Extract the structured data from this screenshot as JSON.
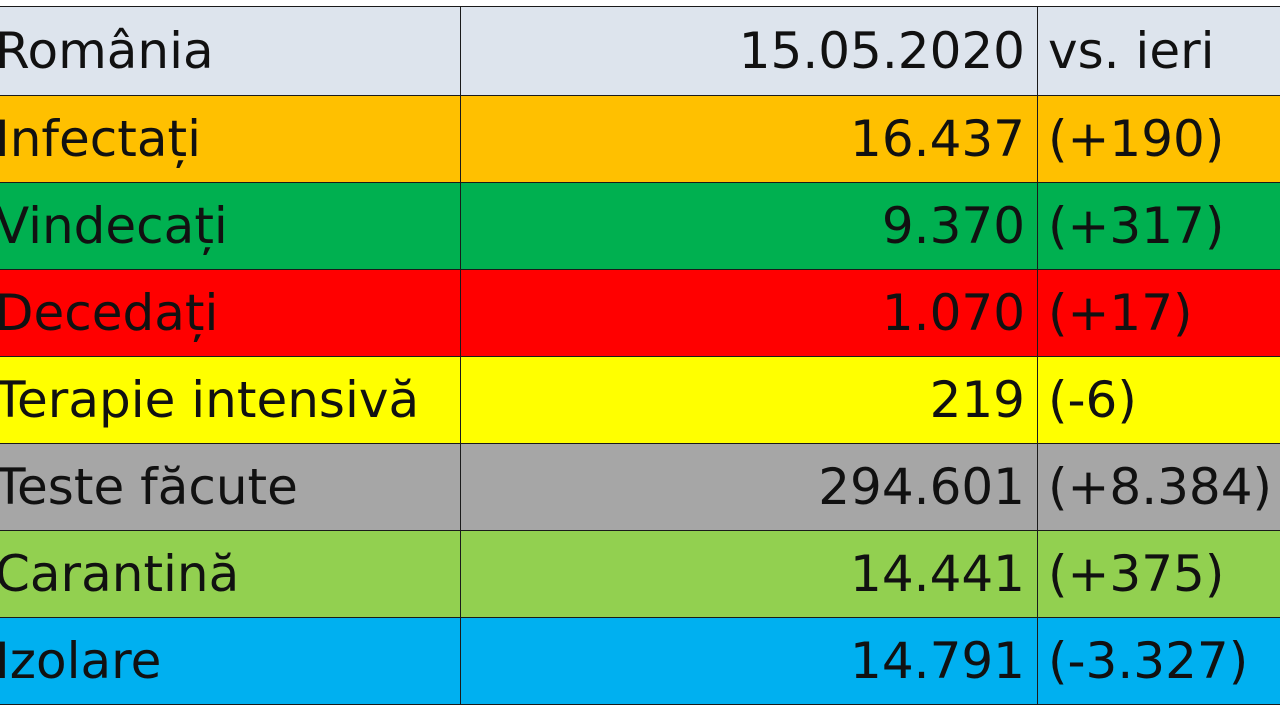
{
  "header": {
    "country": "România",
    "date": "15.05.2020",
    "compare": "vs. ieri"
  },
  "colors": {
    "header_bg": "#dde4ed",
    "infectati": "#ffc000",
    "vindecati": "#00b050",
    "decedati": "#ff0000",
    "terapie": "#ffff00",
    "teste": "#a6a6a6",
    "carantina": "#92d050",
    "izolare": "#00b0f0"
  },
  "rows": [
    {
      "label": "Infectați",
      "value": "16.437",
      "delta": "(+190)"
    },
    {
      "label": "Vindecați",
      "value": "9.370",
      "delta": "(+317)"
    },
    {
      "label": "Decedați",
      "value": "1.070",
      "delta": "(+17)"
    },
    {
      "label": "Terapie intensivă",
      "value": "219",
      "delta": "(-6)"
    },
    {
      "label": "Teste făcute",
      "value": "294.601",
      "delta": "(+8.384)"
    },
    {
      "label": "Carantină",
      "value": "14.441",
      "delta": "(+375)"
    },
    {
      "label": "Izolare",
      "value": "14.791",
      "delta": "(-3.327)"
    }
  ]
}
